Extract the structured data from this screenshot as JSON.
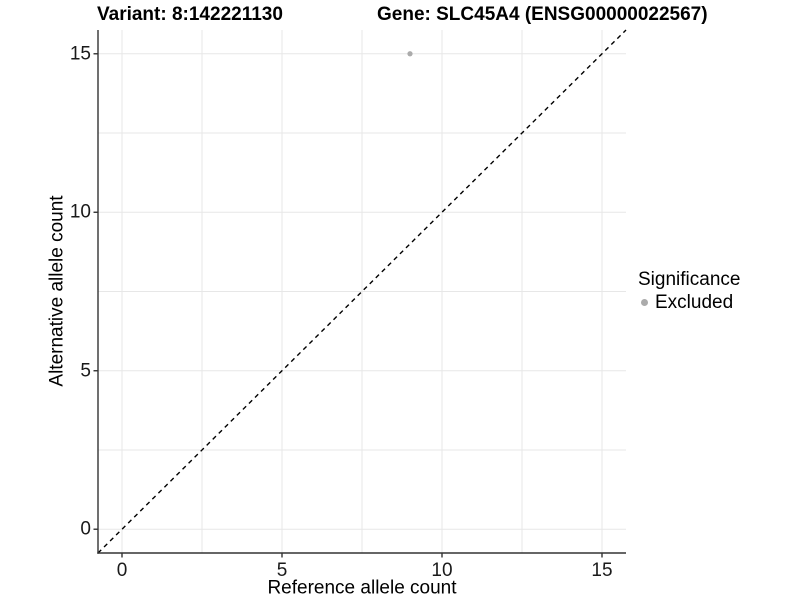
{
  "chart_data": {
    "type": "scatter",
    "title": "Variant: 8:142221130",
    "title2": "Gene: SLC45A4 (ENSG00000022567)",
    "xlabel": "Reference allele count",
    "ylabel": "Alternative allele count",
    "xlim": [
      -0.75,
      15.75
    ],
    "ylim": [
      -0.75,
      15.75
    ],
    "x_ticks": [
      0,
      5,
      10,
      15
    ],
    "y_ticks": [
      0,
      5,
      10,
      15
    ],
    "grid": {
      "show": true,
      "step": 2.5,
      "color": "#e7e7e7"
    },
    "reference_line": {
      "name": "identity y=x",
      "x": [
        -0.75,
        15.75
      ],
      "y": [
        -0.75,
        15.75
      ],
      "style": "dashed",
      "color": "#000000"
    },
    "series": [
      {
        "name": "Excluded",
        "color": "#ababab",
        "marker": "circle",
        "points": [
          {
            "x": 9,
            "y": 15
          }
        ]
      }
    ],
    "legend": {
      "title": "Significance",
      "position": "right",
      "entries": [
        {
          "label": "Excluded",
          "color": "#ababab"
        }
      ]
    },
    "colors": {
      "axis_line": "#333333",
      "tick_mark": "#333333",
      "grid_line": "#e7e7e7",
      "text": "#000000",
      "background": "#ffffff"
    }
  }
}
